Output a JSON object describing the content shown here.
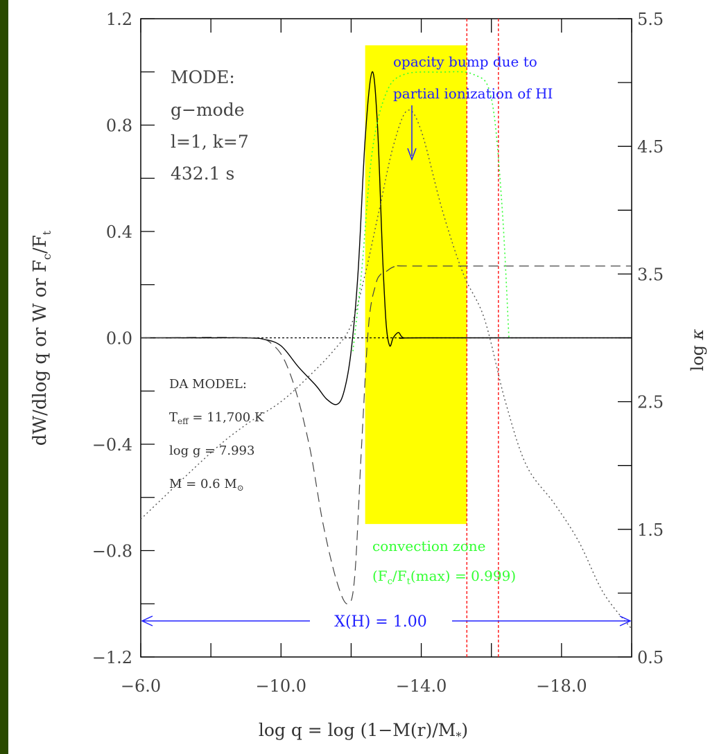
{
  "chart_data": {
    "type": "line",
    "xlabel": "log q = log (1−M(r)/M*)",
    "ylabel": "dW/dlog q or W or Fc/Ft",
    "ylabel_right": "log κ",
    "xlim": [
      -6,
      -20
    ],
    "ylim": [
      -1.2,
      1.2
    ],
    "y2lim": [
      0.5,
      5.5
    ],
    "x_ticks": [
      "−6.0",
      "−10.0",
      "−14.0",
      "−18.0"
    ],
    "y_ticks": [
      "1.2",
      "0.8",
      "0.4",
      "0.0",
      "−0.4",
      "−0.8",
      "−1.2"
    ],
    "y2_ticks": [
      "5.5",
      "4.5",
      "3.5",
      "2.5",
      "1.5",
      "0.5"
    ],
    "mode_text": [
      "MODE:",
      "g−mode",
      "l=1, k=7",
      "432.1 s"
    ],
    "model_text": {
      "title": "DA MODEL:",
      "teff": "11,700 K",
      "logg": "7.993",
      "mass": "0.6"
    },
    "opacity_annotation": [
      "opacity bump due to",
      "partial ionization of HI"
    ],
    "convection_label": "convection zone",
    "convection_value": "= 0.999)",
    "hydrogen_label": "X(H) = 1.00",
    "colors": {
      "convection_zone": "#ffff00",
      "annotation_blue": "#2020ff",
      "convection_green": "#33ff33",
      "boundary_red": "#ff2020",
      "frame_bg": "#2a4a00"
    },
    "convection_zone": {
      "x_start": -12.4,
      "x_end": -15.3,
      "y_bottom": -0.7,
      "y_top": 1.1
    },
    "red_boundaries_x": [
      -15.3,
      -16.2
    ],
    "series": [
      {
        "style": "solid",
        "axis": "left",
        "x": [
          -6.0,
          -8.0,
          -9.0,
          -9.5,
          -10.0,
          -10.5,
          -11.0,
          -11.3,
          -11.6,
          -11.8,
          -12.0,
          -12.2,
          -12.4,
          -12.6,
          -12.75,
          -12.9,
          -13.0,
          -13.1,
          -13.2,
          -13.35,
          -13.5,
          -14.0,
          -20.0
        ],
        "y": [
          0.0,
          0.0,
          0.0,
          -0.005,
          -0.03,
          -0.11,
          -0.18,
          -0.23,
          -0.25,
          -0.2,
          -0.05,
          0.25,
          0.75,
          1.0,
          0.8,
          0.3,
          0.05,
          -0.03,
          0.0,
          0.02,
          0.0,
          0.0,
          0.0
        ]
      },
      {
        "style": "dashed",
        "axis": "left",
        "x": [
          -6.0,
          -9.0,
          -9.8,
          -10.3,
          -10.8,
          -11.2,
          -11.6,
          -11.9,
          -12.1,
          -12.3,
          -12.5,
          -12.7,
          -12.85,
          -13.0,
          -13.3,
          -14.0,
          -20.0
        ],
        "y": [
          0.0,
          0.0,
          -0.03,
          -0.15,
          -0.4,
          -0.7,
          -0.92,
          -1.0,
          -0.9,
          -0.4,
          0.05,
          0.2,
          0.24,
          0.25,
          0.27,
          0.27,
          0.27
        ]
      },
      {
        "style": "dotted",
        "axis": "right",
        "x": [
          -6.0,
          -8.0,
          -9.0,
          -10.0,
          -10.8,
          -11.5,
          -12.0,
          -12.4,
          -12.8,
          -13.2,
          -13.6,
          -14.0,
          -14.6,
          -15.2,
          -15.8,
          -16.4,
          -17.0,
          -17.8,
          -18.5,
          -19.2,
          -20.0
        ],
        "y": [
          1.58,
          2.1,
          2.32,
          2.5,
          2.7,
          2.9,
          3.1,
          3.5,
          4.0,
          4.5,
          4.78,
          4.62,
          4.0,
          3.5,
          3.15,
          2.5,
          2.0,
          1.7,
          1.4,
          1.0,
          0.72
        ]
      },
      {
        "style": "dotted-green",
        "axis": "left",
        "x": [
          -12.05,
          -12.3,
          -12.6,
          -13.0,
          -13.5,
          -14.5,
          -15.5,
          -16.0,
          -16.3,
          -16.5
        ],
        "y": [
          -0.05,
          0.25,
          0.7,
          0.92,
          0.99,
          0.999,
          0.99,
          0.9,
          0.5,
          0.0
        ]
      }
    ]
  }
}
